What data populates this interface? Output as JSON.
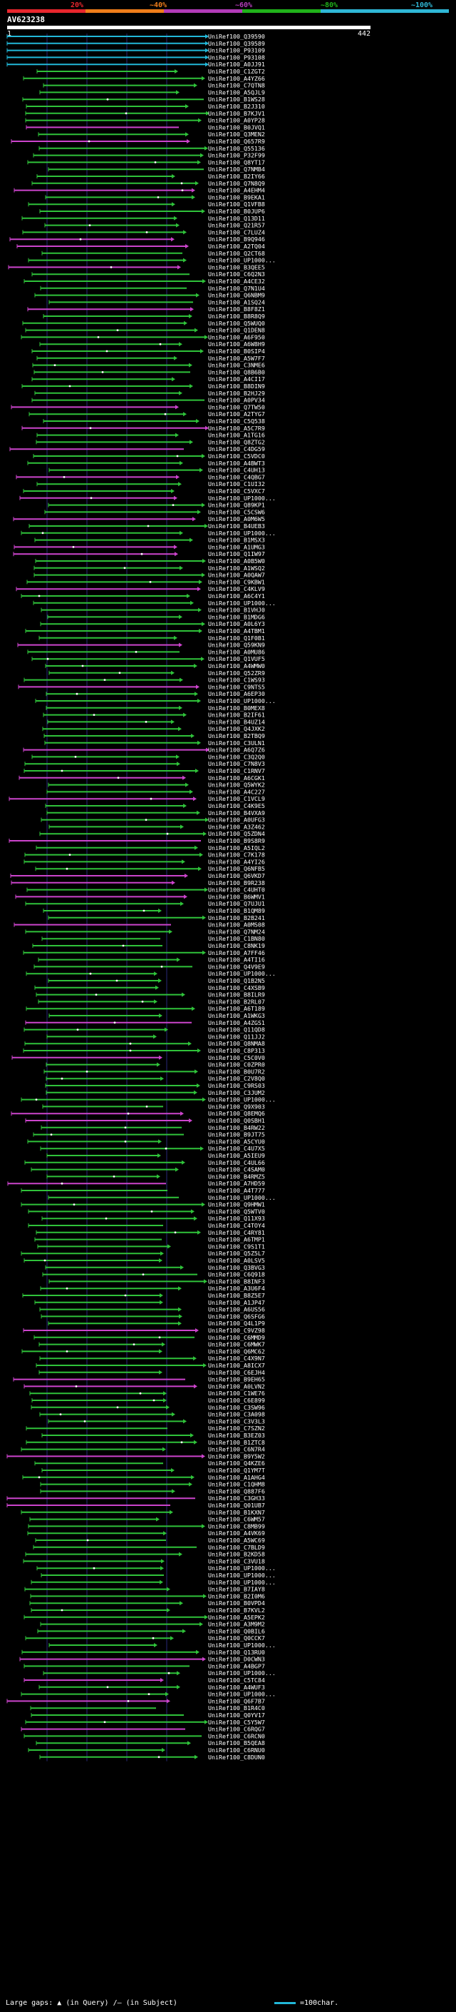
{
  "scale": {
    "ticks": [
      "20%",
      "~40%",
      "~60%",
      "~80%",
      "~100%"
    ],
    "colors": [
      "#e8262d",
      "#ef7d1a",
      "#b23bb8",
      "#20b21a",
      "#2fb7d6"
    ]
  },
  "query": {
    "name": "AV623238",
    "start": "1",
    "end": "442"
  },
  "colors": {
    "cyan": "#22b8d8",
    "green": "#2fc23a",
    "magenta": "#cc44cc",
    "grid": "#2a2a7a",
    "text": "#ffffff"
  },
  "footer": {
    "large_gaps_label": "Large gaps:",
    "query_gap_label": "(in Query)",
    "subject_gap_label": "(in Subject)",
    "scale_label": "=100char."
  },
  "hits": [
    "UniRef100_Q39590",
    "UniRef100_Q39589",
    "UniRef100_P93109",
    "UniRef100_P93108",
    "UniRef100_A0JJ91",
    "UniRef100_C1ZGT2",
    "UniRef100_A4YZ66",
    "UniRef100_C7QTN8",
    "UniRef100_A5QJL9",
    "UniRef100_B1WS28",
    "UniRef100_B2J310",
    "UniRef100_B7KJV1",
    "UniRef100_A0YP28",
    "UniRef100_B0JVQ1",
    "UniRef100_Q3MEN2",
    "UniRef100_Q657R9",
    "UniRef100_Q55136",
    "UniRef100_P32F99",
    "UniRef100_Q8YT17",
    "UniRef100_Q7NMB4",
    "UniRef100_B2IY66",
    "UniRef100_Q7N8Q9",
    "UniRef100_A4EHM4",
    "UniRef100_B9EKA1",
    "UniRef100_Q1VFB8",
    "UniRef100_B0JUP6",
    "UniRef100_Q13D11",
    "UniRef100_Q21R57",
    "UniRef100_C7LUZ4",
    "UniRef100_B9Q946",
    "UniRef100_A2TQ04",
    "UniRef100_Q2CT68",
    "UniRef100_UP1000...",
    "UniRef100_B3QEE5",
    "UniRef100_C6Q2N3",
    "UniRef100_A4CE32",
    "UniRef100_Q7N1U4",
    "UniRef100_Q6NBM9",
    "UniRef100_A1SQ24",
    "UniRef100_B8F8Z1",
    "UniRef100_B8R8Q9",
    "UniRef100_Q5WUQ0",
    "UniRef100_Q1DEN8",
    "UniRef100_A6F950",
    "UniRef100_A6W8H9",
    "UniRef100_B0SIP4",
    "UniRef100_A5W7F7",
    "UniRef100_C3NME6",
    "UniRef100_Q8B6B0",
    "UniRef100_A4CI17",
    "UniRef100_B8DIN9",
    "UniRef100_B2HJ29",
    "UniRef100_A0PV34",
    "UniRef100_Q7TW50",
    "UniRef100_A2TYG7",
    "UniRef100_C5Q538",
    "UniRef100_A5C7R9",
    "UniRef100_A1TG16",
    "UniRef100_Q8ZTG2",
    "UniRef100_C4DG59",
    "UniRef100_C5VDC0",
    "UniRef100_A4BWT3",
    "UniRef100_C4UH13",
    "UniRef100_C4QBG7",
    "UniRef100_C1UI32",
    "UniRef100_C5VXC7",
    "UniRef100_UP1000...",
    "UniRef100_Q89KP1",
    "UniRef100_C5CSW6",
    "UniRef100_A0M6W5",
    "UniRef100_B4UEB3",
    "UniRef100_UP1000...",
    "UniRef100_B1MSX3",
    "UniRef100_A1UMG3",
    "UniRef100_Q1IW97",
    "UniRef100_A0B5W0",
    "UniRef100_A1WSQ2",
    "UniRef100_A0QAW7",
    "UniRef100_C9KBW1",
    "UniRef100_C4KLV9",
    "UniRef100_A6C4Y1",
    "UniRef100_UP1000...",
    "UniRef100_B1VHJ0",
    "UniRef100_B1MDG6",
    "UniRef100_A0L6Y3",
    "UniRef100_A4TBM1",
    "UniRef100_Q1F0B1",
    "UniRef100_Q59KN9",
    "UniRef100_A0MU86",
    "UniRef100_Q1VUF5",
    "UniRef100_A4WMW0",
    "UniRef100_Q52ZR9",
    "UniRef100_C1WS93",
    "UniRef100_C9NTS5",
    "UniRef100_A6EP30",
    "UniRef100_UP1000...",
    "UniRef100_B0MEX8",
    "UniRef100_B2IF61",
    "UniRef100_B4UZ14",
    "UniRef100_Q4JXK2",
    "UniRef100_B2TBQ9",
    "UniRef100_C3ULN1",
    "UniRef100_A6Q7Z6",
    "UniRef100_C3Q2Q0",
    "UniRef100_C7N8V3",
    "UniRef100_C1RNV7",
    "UniRef100_A6CGK1",
    "UniRef100_Q5WYK2",
    "UniRef100_A4C227",
    "UniRef100_C1VCL9",
    "UniRef100_C4K9E5",
    "UniRef100_B4VXA9",
    "UniRef100_A0UFG3",
    "UniRef100_A3Z462",
    "UniRef100_Q5ZDN4",
    "UniRef100_B9S8R9",
    "UniRef100_A5IQL2",
    "UniRef100_C7K178",
    "UniRef100_A4YI26",
    "UniRef100_Q6NFB5",
    "UniRef100_Q6VKD7",
    "UniRef100_B9R238",
    "UniRef100_C4UHT0",
    "UniRef100_B6WMV1",
    "UniRef100_Q7UJU1",
    "UniRef100_B1QM89",
    "UniRef100_B2B241",
    "UniRef100_A0MS08",
    "UniRef100_Q7NM24",
    "UniRef100_C1BN80",
    "UniRef100_C8NK19",
    "UniRef100_A7FF46",
    "UniRef100_A4TI16",
    "UniRef100_Q4V9E9",
    "UniRef100_UP1000...",
    "UniRef100_Q1B2N5",
    "UniRef100_C4XSB9",
    "UniRef100_B8ILR9",
    "UniRef100_B2RL07",
    "UniRef100_A6T189",
    "UniRef100_A1WKG3",
    "UniRef100_A4ZGS1",
    "UniRef100_Q11QD8",
    "UniRef100_Q11JJ2",
    "UniRef100_Q8NMA8",
    "UniRef100_C8P313",
    "UniRef100_C5C0V0",
    "UniRef100_C0ZPR0",
    "UniRef100_B0U7R2",
    "UniRef100_C2V8Q0",
    "UniRef100_C9RS03",
    "UniRef100_C3JUM2",
    "UniRef100_UP1000...",
    "UniRef100_Q9X903",
    "UniRef100_Q8EMQ6",
    "UniRef100_Q0SBH1",
    "UniRef100_B4RW22",
    "UniRef100_B9JT75",
    "UniRef100_A5CYU0",
    "UniRef100_C4U7X5",
    "UniRef100_A5IEU9",
    "UniRef100_C4UL66",
    "UniRef100_C4SAM0",
    "UniRef100_B4RMZ5",
    "UniRef100_A7HD59",
    "UniRef100_A4T777",
    "UniRef100_UP1000...",
    "UniRef100_Q9HMW1",
    "UniRef100_Q5WTV0",
    "UniRef100_Q11X93",
    "UniRef100_C4TOY4",
    "UniRef100_C4RY81",
    "UniRef100_A6TMP1",
    "UniRef100_C9S1T1",
    "UniRef100_Q5Z5L7",
    "UniRef100_A0LSV5",
    "UniRef100_Q3BVG3",
    "UniRef100_C6Q918",
    "UniRef100_B8INF3",
    "UniRef100_A3U6F4",
    "UniRef100_B8Z5E7",
    "UniRef100_A1JP47",
    "UniRef100_A6US56",
    "UniRef100_Q6SFG6",
    "UniRef100_Q4L1P9",
    "UniRef100_C9VZ98",
    "UniRef100_C6MMD9",
    "UniRef100_C6MWK7",
    "UniRef100_Q6MC62",
    "UniRef100_C4X9N7",
    "UniRef100_A8ICX7",
    "UniRef100_C6EJH4",
    "UniRef100_B9EH65",
    "UniRef100_A0LVN2",
    "UniRef100_C1WE76",
    "UniRef100_C6E899",
    "UniRef100_C3SW96",
    "UniRef100_C3A098",
    "UniRef100_C3V3L3",
    "UniRef100_C7SZN2",
    "UniRef100_B3EZ03",
    "UniRef100_B1ZTC8",
    "UniRef100_C6N7R4",
    "UniRef100_B9Y5W2",
    "UniRef100_Q4KZE6",
    "UniRef100_Q1YM7T",
    "UniRef100_A1AHG4",
    "UniRef100_C1QHM8",
    "UniRef100_Q887F6",
    "UniRef100_C3GH33",
    "UniRef100_Q01UB7",
    "UniRef100_B1KXN7",
    "UniRef100_C6WM57",
    "UniRef100_C8MB99",
    "UniRef100_A4VK69",
    "UniRef100_A5WC69",
    "UniRef100_C7BLD9",
    "UniRef100_B2KD58",
    "UniRef100_C3VU18",
    "UniRef100_UP1000...",
    "UniRef100_UP1000...",
    "UniRef100_UP1000...",
    "UniRef100_B7IAY8",
    "UniRef100_B2I0M6",
    "UniRef100_B0VPD4",
    "UniRef100_B7KVL2",
    "UniRef100_A5EPK2",
    "UniRef100_A3M9M2",
    "UniRef100_Q0BIL6",
    "UniRef100_Q0CCK7",
    "UniRef100_UP1000...",
    "UniRef100_Q13RU0",
    "UniRef100_D0CWN3",
    "UniRef100_A4BGP7",
    "UniRef100_UP1000...",
    "UniRef100_C5TC84",
    "UniRef100_A4WUF3",
    "UniRef100_UP1000...",
    "UniRef100_Q6F7B7",
    "UniRef100_B1R4C0",
    "UniRef100_Q0YV17",
    "UniRef100_C5Y5W7",
    "UniRef100_C6RQG7",
    "UniRef100_C6RCN0",
    "UniRef100_B5QEA8",
    "UniRef100_C6RNU0",
    "UniRef100_C8DUN0"
  ]
}
